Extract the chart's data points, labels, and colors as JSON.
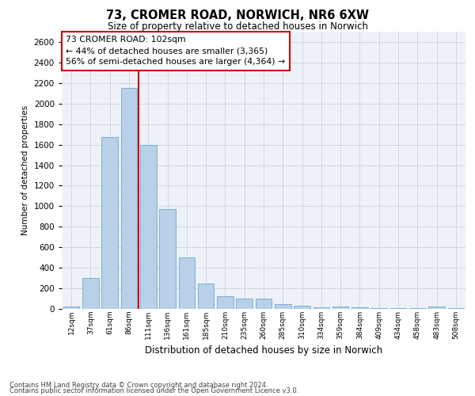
{
  "title1": "73, CROMER ROAD, NORWICH, NR6 6XW",
  "title2": "Size of property relative to detached houses in Norwich",
  "xlabel": "Distribution of detached houses by size in Norwich",
  "ylabel": "Number of detached properties",
  "categories": [
    "12sqm",
    "37sqm",
    "61sqm",
    "86sqm",
    "111sqm",
    "136sqm",
    "161sqm",
    "185sqm",
    "210sqm",
    "235sqm",
    "260sqm",
    "285sqm",
    "310sqm",
    "334sqm",
    "359sqm",
    "384sqm",
    "409sqm",
    "434sqm",
    "458sqm",
    "483sqm",
    "508sqm"
  ],
  "values": [
    25,
    300,
    1675,
    2150,
    1600,
    975,
    500,
    250,
    125,
    100,
    100,
    50,
    30,
    15,
    20,
    15,
    10,
    10,
    5,
    25,
    5
  ],
  "bar_color": "#b8d0e8",
  "bar_edgecolor": "#6aaad4",
  "vline_color": "#cc0000",
  "vline_x": 4.0,
  "annotation_text": "73 CROMER ROAD: 102sqm\n← 44% of detached houses are smaller (3,365)\n56% of semi-detached houses are larger (4,364) →",
  "annotation_box_edgecolor": "#cc0000",
  "ylim": [
    0,
    2700
  ],
  "yticks": [
    0,
    200,
    400,
    600,
    800,
    1000,
    1200,
    1400,
    1600,
    1800,
    2000,
    2200,
    2400,
    2600
  ],
  "grid_color": "#c8d4e0",
  "background_color": "#eef2f8",
  "footer1": "Contains HM Land Registry data © Crown copyright and database right 2024.",
  "footer2": "Contains public sector information licensed under the Open Government Licence v3.0."
}
